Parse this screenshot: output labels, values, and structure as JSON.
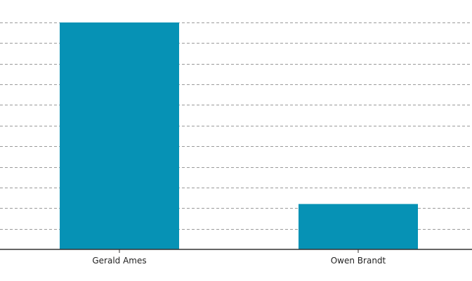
{
  "chart_data": {
    "type": "bar",
    "categories": [
      "Gerald Ames",
      "Owen Brandt"
    ],
    "values": [
      11,
      2.2
    ],
    "ylim": [
      0,
      11
    ],
    "grid": true,
    "grid_step": 1,
    "bar_color": "#0692b5",
    "title": "",
    "xlabel": "",
    "ylabel": ""
  }
}
